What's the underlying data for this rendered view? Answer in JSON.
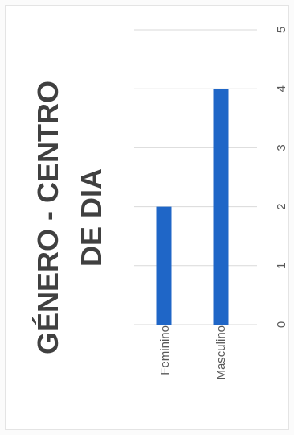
{
  "chart_data": {
    "type": "bar",
    "title_lines": [
      "GÉNERO - CENTRO",
      "DE DIA"
    ],
    "categories": [
      "Feminino",
      "Masculino"
    ],
    "values": [
      2,
      4
    ],
    "xlim": [
      0,
      5
    ],
    "ticks": [
      "0",
      "1",
      "2",
      "3",
      "4",
      "5"
    ],
    "grid": true,
    "bar_color": "#1f66c7",
    "grid_color": "#d9d9d9"
  }
}
